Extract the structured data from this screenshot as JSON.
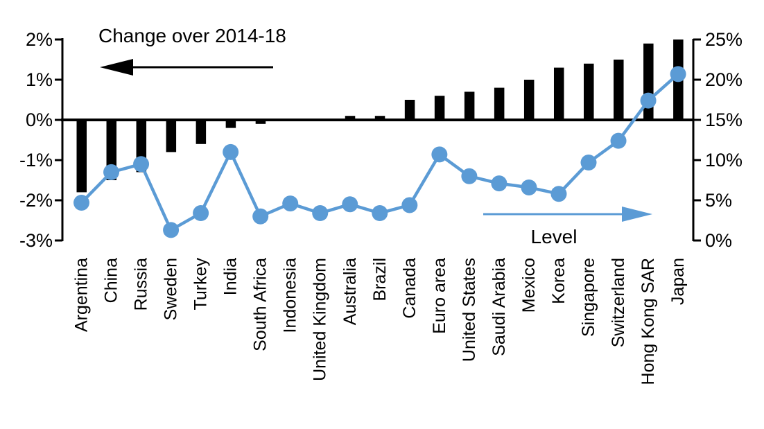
{
  "chart_data": {
    "type": "bar",
    "subtype": "combo-bar-line-dual-axis",
    "title": "",
    "categories": [
      "Argentina",
      "China",
      "Russia",
      "Sweden",
      "Turkey",
      "India",
      "South Africa",
      "Indonesia",
      "United Kingdom",
      "Australia",
      "Brazil",
      "Canada",
      "Euro area",
      "United States",
      "Saudi Arabia",
      "Mexico",
      "Korea",
      "Singapore",
      "Switzerland",
      "Hong Kong SAR",
      "Japan"
    ],
    "series": [
      {
        "name": "Change over 2014-18",
        "type": "bar",
        "axis": "left",
        "unit": "%",
        "color": "#000000",
        "values": [
          -1.8,
          -1.5,
          -1.3,
          -0.8,
          -0.6,
          -0.2,
          -0.1,
          0.0,
          0.0,
          0.1,
          0.1,
          0.5,
          0.6,
          0.7,
          0.8,
          1.0,
          1.3,
          1.4,
          1.5,
          1.9,
          2.0
        ]
      },
      {
        "name": "Level",
        "type": "line",
        "axis": "right",
        "unit": "%",
        "color": "#5B9BD5",
        "values": [
          4.7,
          8.5,
          9.5,
          1.3,
          3.4,
          11.0,
          3.0,
          4.6,
          3.4,
          4.5,
          3.4,
          4.4,
          10.7,
          8.0,
          7.1,
          6.6,
          5.8,
          9.7,
          12.4,
          17.4,
          20.7
        ]
      }
    ],
    "left_axis": {
      "tick_labels": [
        "2%",
        "1%",
        "0%",
        "-1%",
        "-2%",
        "-3%"
      ],
      "min": -3,
      "max": 2
    },
    "right_axis": {
      "tick_labels": [
        "25%",
        "20%",
        "15%",
        "10%",
        "5%",
        "0%"
      ],
      "min": 0,
      "max": 25
    },
    "annotations": {
      "left": {
        "label": "Change over 2014-18",
        "arrow_direction": "left",
        "color": "#000000"
      },
      "right": {
        "label": "Level",
        "arrow_direction": "right",
        "color": "#5B9BD5"
      }
    },
    "colors": {
      "bar": "#000000",
      "line": "#5B9BD5",
      "background": "#FFFFFF"
    },
    "legend": "none",
    "grid": false
  }
}
